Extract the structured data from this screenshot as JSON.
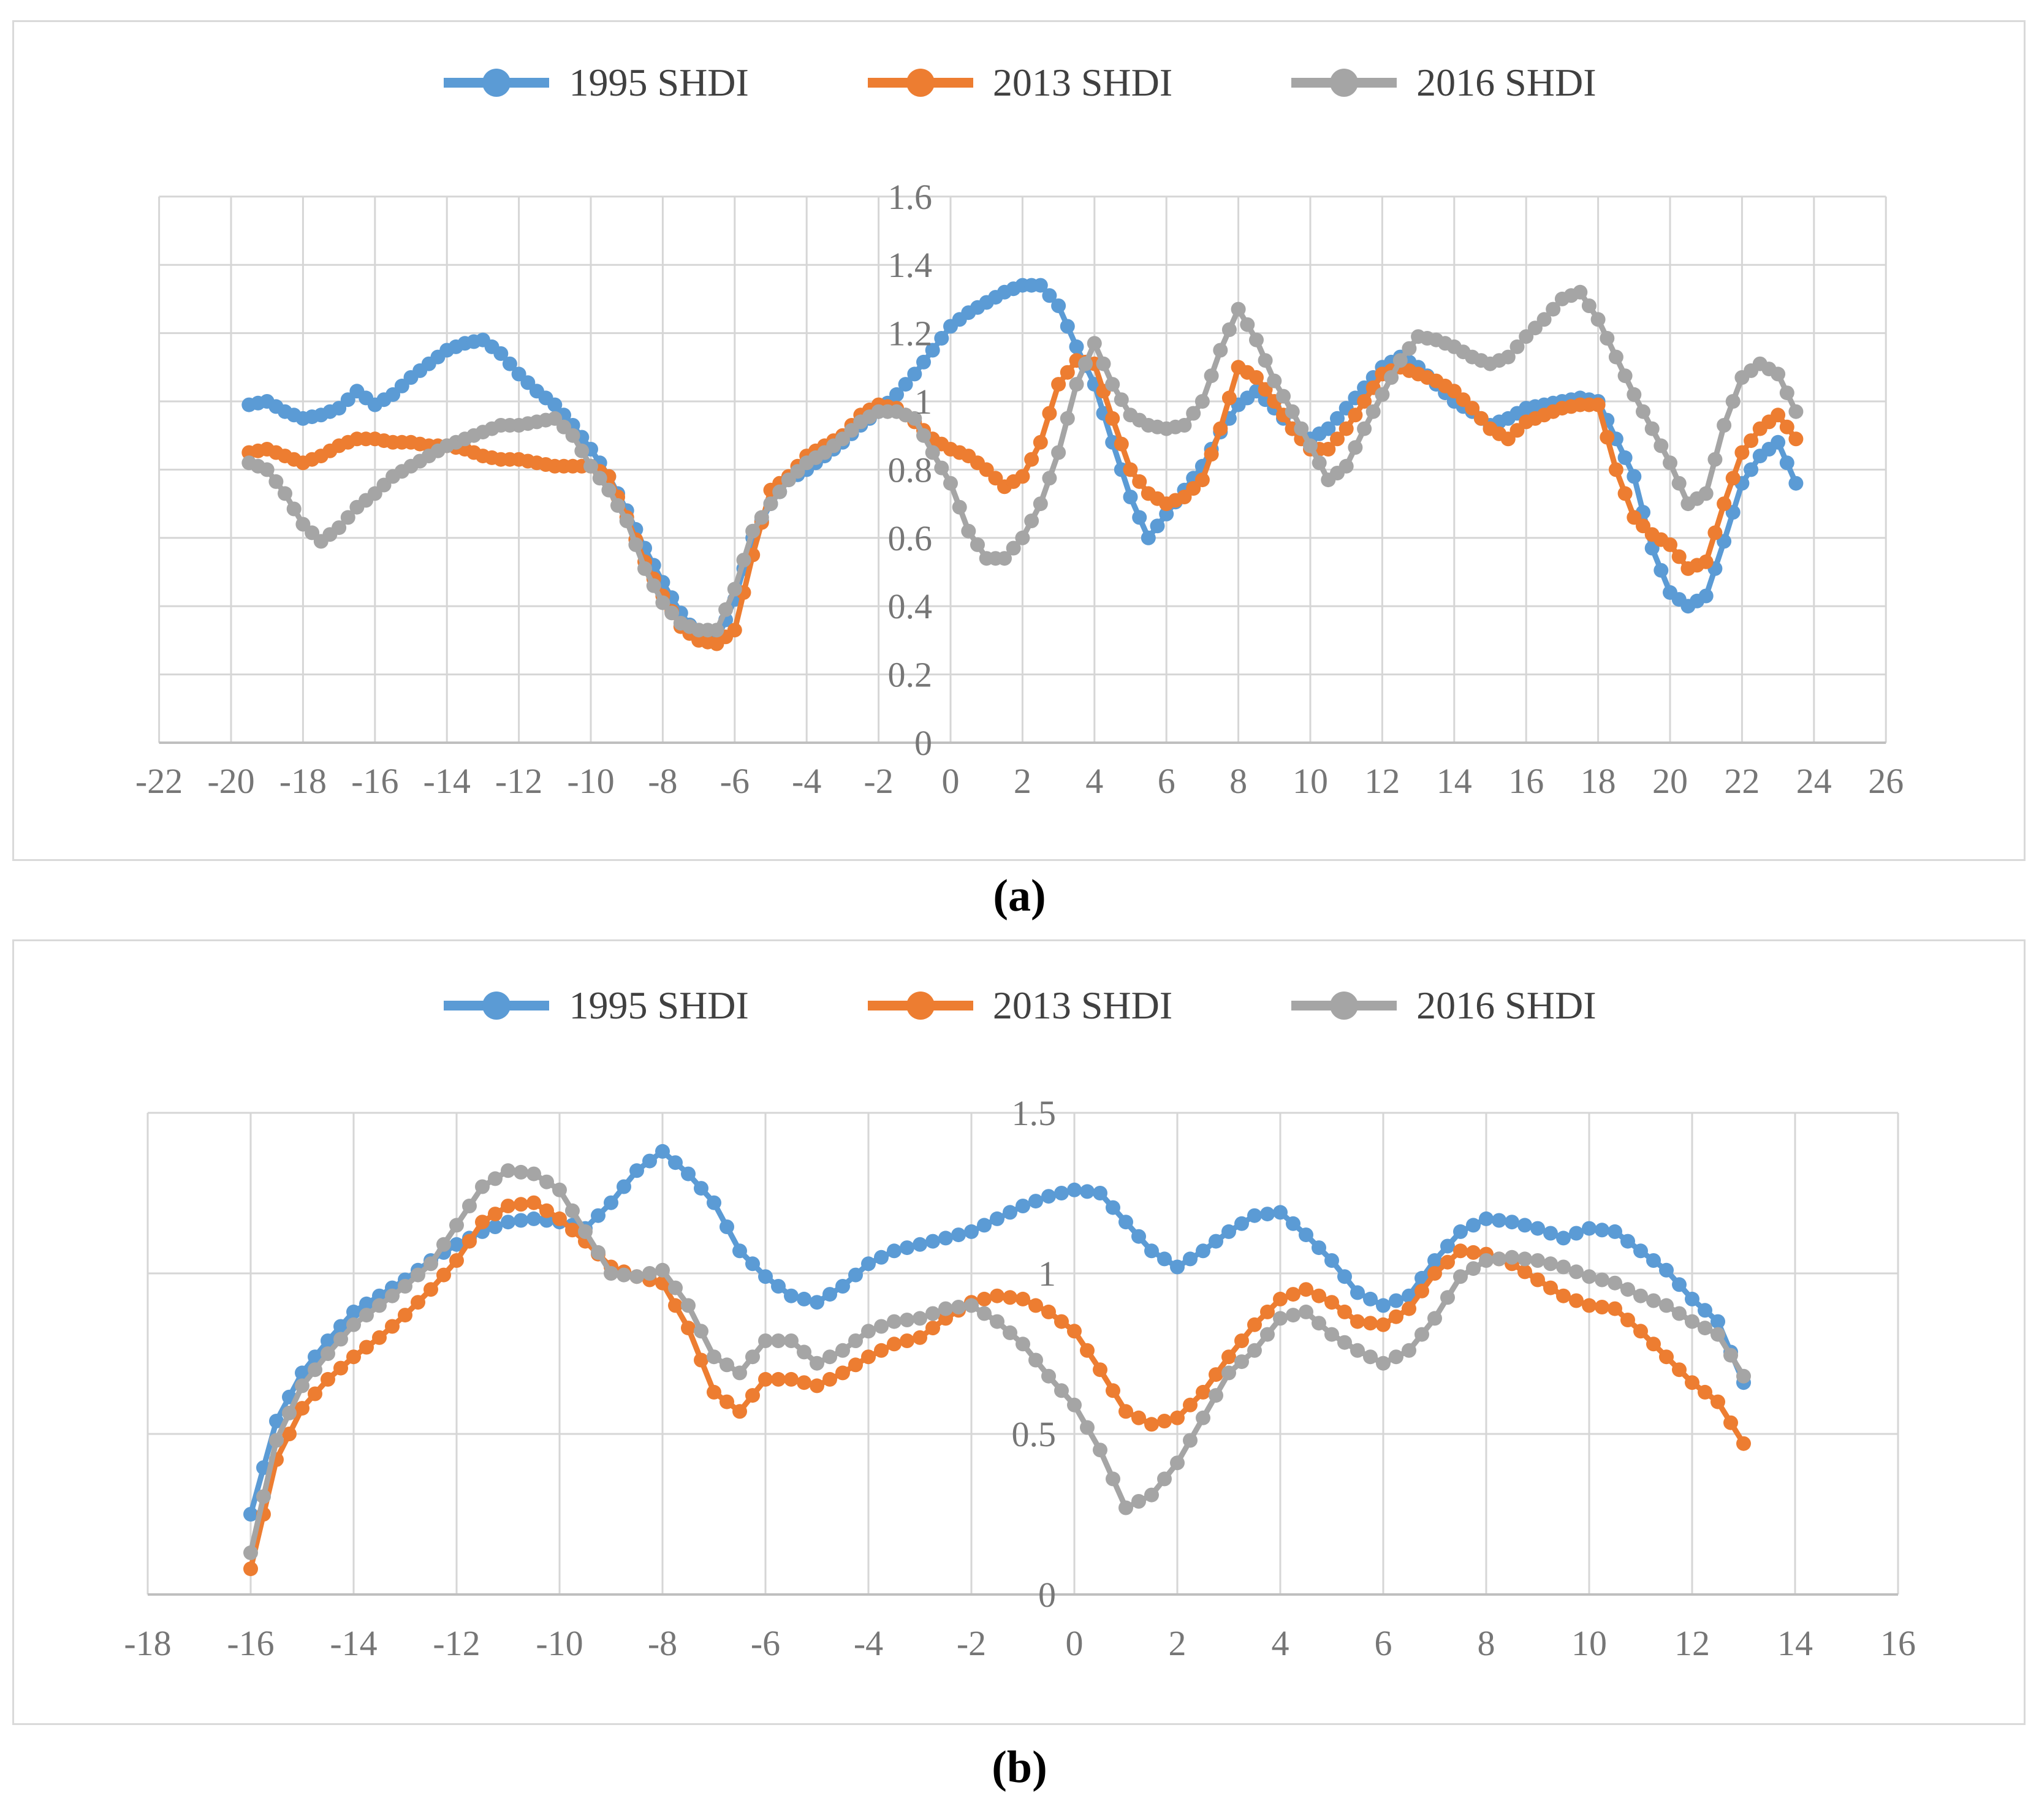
{
  "captions": {
    "a": "(a)",
    "b": "(b)"
  },
  "colors": {
    "series_1995": "#5B9BD5",
    "series_2013": "#ED7D31",
    "series_2016": "#A5A5A5",
    "gridline": "#D6D6D6",
    "zero_axis": "#BFBFBF",
    "tick_label": "#767676",
    "legend_text": "#404040",
    "panel_border": "#D9D9D9",
    "background": "#FFFFFF"
  },
  "chart_data": [
    {
      "id": "a",
      "type": "line",
      "title": "",
      "legend_position": "top-center",
      "grid": true,
      "xlim": [
        -22,
        26
      ],
      "ylim": [
        0,
        1.6
      ],
      "x_tick_values": [
        -22,
        -20,
        -18,
        -16,
        -14,
        -12,
        -10,
        -8,
        -6,
        -4,
        -2,
        0,
        2,
        4,
        6,
        8,
        10,
        12,
        14,
        16,
        18,
        20,
        22,
        24,
        26
      ],
      "x_tick_labels": [
        "-22",
        "-20",
        "-18",
        "-16",
        "-14",
        "-12",
        "-10",
        "-8",
        "-6",
        "-4",
        "-2",
        "0",
        "2",
        "4",
        "6",
        "8",
        "10",
        "12",
        "14",
        "16",
        "18",
        "20",
        "22",
        "24",
        "26"
      ],
      "y_tick_values": [
        0,
        0.2,
        0.4,
        0.6,
        0.8,
        1,
        1.2,
        1.4,
        1.6
      ],
      "y_tick_labels": [
        "0",
        "0.2",
        "0.4",
        "0.6",
        "0.8",
        "1",
        "1.2",
        "1.4",
        "1.6"
      ],
      "x": [
        -19.5,
        -19,
        -18.5,
        -18,
        -17.5,
        -17,
        -16.5,
        -16,
        -15.5,
        -15,
        -14.5,
        -14,
        -13.5,
        -13,
        -12.5,
        -12,
        -11.5,
        -11,
        -10.5,
        -10,
        -9.5,
        -9,
        -8.5,
        -8,
        -7.5,
        -7,
        -6.5,
        -6,
        -5.5,
        -5,
        -4.5,
        -4,
        -3.5,
        -3,
        -2.5,
        -2,
        -1.5,
        -1,
        -0.5,
        0,
        0.5,
        1,
        1.5,
        2,
        2.5,
        3,
        3.5,
        4,
        4.5,
        5,
        5.5,
        6,
        6.5,
        7,
        7.5,
        8,
        8.5,
        9,
        9.5,
        10,
        10.5,
        11,
        11.5,
        12,
        12.5,
        13,
        13.5,
        14,
        14.5,
        15,
        15.5,
        16,
        16.5,
        17,
        17.5,
        18,
        18.5,
        19,
        19.5,
        20,
        20.5,
        21,
        21.5,
        22,
        22.5,
        23,
        23.5
      ],
      "series": [
        {
          "name": "1995 SHDI",
          "color": "#5B9BD5",
          "values": [
            0.99,
            1.0,
            0.97,
            0.95,
            0.96,
            0.98,
            1.03,
            0.99,
            1.02,
            1.07,
            1.11,
            1.15,
            1.17,
            1.18,
            1.14,
            1.08,
            1.03,
            0.99,
            0.93,
            0.86,
            0.78,
            0.68,
            0.57,
            0.47,
            0.38,
            0.31,
            0.3,
            0.42,
            0.6,
            0.7,
            0.77,
            0.8,
            0.84,
            0.88,
            0.93,
            0.97,
            1.02,
            1.08,
            1.15,
            1.22,
            1.26,
            1.29,
            1.32,
            1.34,
            1.34,
            1.28,
            1.16,
            1.05,
            0.88,
            0.72,
            0.6,
            0.67,
            0.74,
            0.81,
            0.91,
            0.99,
            1.03,
            0.98,
            0.92,
            0.89,
            0.92,
            0.98,
            1.04,
            1.1,
            1.13,
            1.1,
            1.05,
            1.0,
            0.97,
            0.93,
            0.95,
            0.98,
            0.99,
            1.0,
            1.01,
            1.0,
            0.89,
            0.78,
            0.57,
            0.44,
            0.4,
            0.43,
            0.59,
            0.76,
            0.84,
            0.88,
            0.76
          ]
        },
        {
          "name": "2013 SHDI",
          "color": "#ED7D31",
          "values": [
            0.85,
            0.86,
            0.84,
            0.82,
            0.84,
            0.87,
            0.89,
            0.89,
            0.88,
            0.88,
            0.87,
            0.87,
            0.86,
            0.84,
            0.83,
            0.83,
            0.82,
            0.81,
            0.81,
            0.81,
            0.78,
            0.66,
            0.53,
            0.43,
            0.34,
            0.3,
            0.29,
            0.33,
            0.55,
            0.74,
            0.78,
            0.84,
            0.87,
            0.9,
            0.96,
            0.99,
            0.98,
            0.94,
            0.89,
            0.86,
            0.84,
            0.8,
            0.75,
            0.78,
            0.88,
            1.05,
            1.12,
            1.11,
            0.95,
            0.8,
            0.73,
            0.7,
            0.72,
            0.77,
            0.92,
            1.1,
            1.07,
            1.0,
            0.92,
            0.86,
            0.86,
            0.92,
            1.0,
            1.08,
            1.1,
            1.08,
            1.06,
            1.03,
            0.98,
            0.92,
            0.89,
            0.94,
            0.96,
            0.98,
            0.99,
            0.99,
            0.8,
            0.66,
            0.61,
            0.58,
            0.51,
            0.53,
            0.7,
            0.85,
            0.92,
            0.96,
            0.89
          ]
        },
        {
          "name": "2016 SHDI",
          "color": "#A5A5A5",
          "values": [
            0.82,
            0.8,
            0.73,
            0.64,
            0.59,
            0.63,
            0.69,
            0.73,
            0.78,
            0.81,
            0.84,
            0.87,
            0.89,
            0.91,
            0.93,
            0.93,
            0.94,
            0.95,
            0.9,
            0.81,
            0.74,
            0.65,
            0.51,
            0.41,
            0.35,
            0.33,
            0.33,
            0.45,
            0.62,
            0.7,
            0.77,
            0.82,
            0.85,
            0.89,
            0.94,
            0.97,
            0.97,
            0.95,
            0.85,
            0.76,
            0.62,
            0.54,
            0.54,
            0.6,
            0.7,
            0.85,
            1.05,
            1.17,
            1.05,
            0.96,
            0.93,
            0.92,
            0.93,
            1.0,
            1.15,
            1.27,
            1.18,
            1.06,
            0.97,
            0.87,
            0.77,
            0.81,
            0.92,
            1.02,
            1.12,
            1.19,
            1.18,
            1.16,
            1.13,
            1.11,
            1.13,
            1.19,
            1.24,
            1.3,
            1.32,
            1.24,
            1.13,
            1.02,
            0.92,
            0.82,
            0.7,
            0.73,
            0.93,
            1.07,
            1.11,
            1.08,
            0.97
          ]
        }
      ]
    },
    {
      "id": "b",
      "type": "line",
      "title": "",
      "legend_position": "top-center",
      "grid": true,
      "xlim": [
        -18,
        16
      ],
      "ylim": [
        0,
        1.5
      ],
      "x_tick_values": [
        -18,
        -16,
        -14,
        -12,
        -10,
        -8,
        -6,
        -4,
        -2,
        0,
        2,
        4,
        6,
        8,
        10,
        12,
        14,
        16
      ],
      "x_tick_labels": [
        "-18",
        "-16",
        "-14",
        "-12",
        "-10",
        "-8",
        "-6",
        "-4",
        "-2",
        "0",
        "2",
        "4",
        "6",
        "8",
        "10",
        "12",
        "14",
        "16"
      ],
      "y_tick_values": [
        0,
        0.5,
        1,
        1.5
      ],
      "y_tick_labels": [
        "0",
        "0.5",
        "1",
        "1.5"
      ],
      "x": [
        -16,
        -15.5,
        -15,
        -14.5,
        -14,
        -13.5,
        -13,
        -12.5,
        -12,
        -11.5,
        -11,
        -10.5,
        -10,
        -9.5,
        -9,
        -8.5,
        -8,
        -7.5,
        -7,
        -6.5,
        -6,
        -5.5,
        -5,
        -4.5,
        -4,
        -3.5,
        -3,
        -2.5,
        -2,
        -1.5,
        -1,
        -0.5,
        0,
        0.5,
        1,
        1.5,
        2,
        2.5,
        3,
        3.5,
        4,
        4.5,
        5,
        5.5,
        6,
        6.5,
        7,
        7.5,
        8,
        8.5,
        9,
        9.5,
        10,
        10.5,
        11,
        11.5,
        12,
        12.5,
        13
      ],
      "series": [
        {
          "name": "1995 SHDI",
          "color": "#5B9BD5",
          "values": [
            0.25,
            0.54,
            0.69,
            0.79,
            0.88,
            0.93,
            0.98,
            1.04,
            1.09,
            1.13,
            1.16,
            1.17,
            1.16,
            1.14,
            1.22,
            1.32,
            1.38,
            1.31,
            1.22,
            1.07,
            0.99,
            0.93,
            0.91,
            0.96,
            1.03,
            1.07,
            1.09,
            1.11,
            1.13,
            1.17,
            1.21,
            1.24,
            1.26,
            1.25,
            1.16,
            1.07,
            1.02,
            1.07,
            1.13,
            1.18,
            1.19,
            1.12,
            1.04,
            0.94,
            0.9,
            0.93,
            1.04,
            1.13,
            1.17,
            1.16,
            1.14,
            1.11,
            1.14,
            1.13,
            1.07,
            1.01,
            0.92,
            0.85,
            0.66
          ]
        },
        {
          "name": "2013 SHDI",
          "color": "#ED7D31",
          "values": [
            0.08,
            0.42,
            0.58,
            0.67,
            0.74,
            0.8,
            0.87,
            0.95,
            1.04,
            1.16,
            1.21,
            1.22,
            1.17,
            1.1,
            1.02,
            0.99,
            0.97,
            0.83,
            0.63,
            0.57,
            0.67,
            0.67,
            0.65,
            0.69,
            0.74,
            0.78,
            0.8,
            0.86,
            0.91,
            0.93,
            0.92,
            0.88,
            0.82,
            0.7,
            0.57,
            0.53,
            0.55,
            0.63,
            0.74,
            0.84,
            0.92,
            0.95,
            0.91,
            0.85,
            0.84,
            0.89,
            1.0,
            1.07,
            1.06,
            1.03,
            0.98,
            0.93,
            0.9,
            0.89,
            0.82,
            0.74,
            0.66,
            0.6,
            0.47
          ]
        },
        {
          "name": "2016 SHDI",
          "color": "#A5A5A5",
          "values": [
            0.13,
            0.48,
            0.65,
            0.75,
            0.84,
            0.9,
            0.96,
            1.03,
            1.15,
            1.27,
            1.32,
            1.31,
            1.26,
            1.13,
            1.0,
            0.99,
            1.01,
            0.9,
            0.74,
            0.69,
            0.79,
            0.79,
            0.72,
            0.76,
            0.82,
            0.85,
            0.86,
            0.89,
            0.9,
            0.85,
            0.78,
            0.68,
            0.59,
            0.45,
            0.27,
            0.31,
            0.41,
            0.55,
            0.69,
            0.76,
            0.86,
            0.88,
            0.81,
            0.76,
            0.72,
            0.76,
            0.86,
            0.99,
            1.04,
            1.05,
            1.04,
            1.02,
            0.99,
            0.97,
            0.93,
            0.9,
            0.85,
            0.81,
            0.68
          ]
        }
      ]
    }
  ]
}
